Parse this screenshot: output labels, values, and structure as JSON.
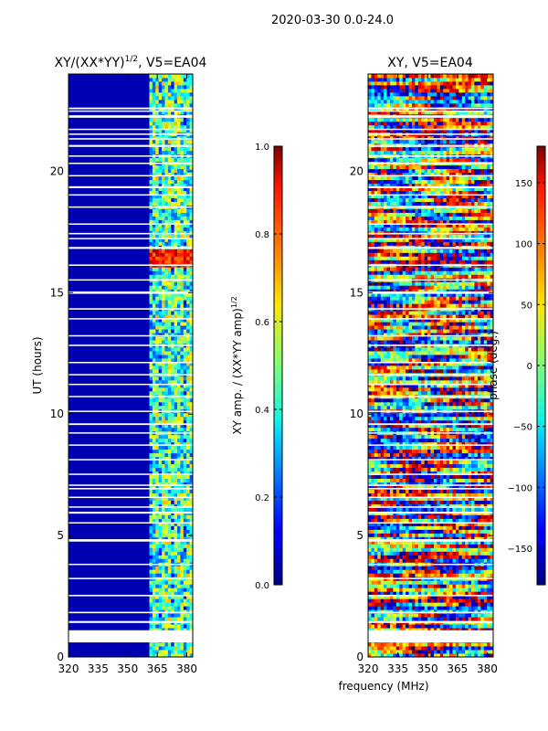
{
  "suptitle": "2020-03-30 0.0-24.0",
  "colors": {
    "background_blue": "#00007f",
    "blank_row": "#ffffff",
    "axis": "#000000"
  },
  "chart_data": [
    {
      "type": "heatmap",
      "title_main": "XY/(XX*YY)",
      "title_exp": "1/2",
      "title_rest": ", V5=EA04",
      "xlabel": "",
      "ylabel": "UT (hours)",
      "xlim": [
        320,
        383
      ],
      "ylim": [
        0,
        24
      ],
      "xticks": [
        320,
        335,
        350,
        365,
        380
      ],
      "yticks": [
        0,
        5,
        10,
        15,
        20
      ],
      "colorscale": "jet",
      "colorbar": {
        "label_main": "XY amp. / (XX*YY amp)",
        "label_exp": "1/2",
        "range": [
          0.0,
          1.0
        ],
        "ticks": [
          "0.0",
          "0.2",
          "0.4",
          "0.6",
          "0.8",
          "1.0"
        ],
        "tick_values": [
          0.0,
          0.2,
          0.4,
          0.6,
          0.8,
          1.0
        ]
      },
      "description_values": {
        "low_freq_band_MHz": [
          320,
          361
        ],
        "low_freq_level": 0.05,
        "high_freq_band_MHz": [
          361,
          383
        ],
        "high_freq_level_range": [
          0.2,
          0.7
        ],
        "bright_rows_UT": [
          16.0,
          16.8
        ]
      }
    },
    {
      "type": "heatmap",
      "title_main": "XY, V5=EA04",
      "xlabel": "frequency (MHz)",
      "ylabel": "",
      "xlim": [
        320,
        383
      ],
      "ylim": [
        0,
        24
      ],
      "xticks": [
        320,
        335,
        350,
        365,
        380
      ],
      "yticks": [
        0,
        5,
        10,
        15,
        20
      ],
      "colorscale": "jet",
      "colorbar": {
        "label_main": "phase (deg.)",
        "range": [
          -180,
          180
        ],
        "ticks": [
          "150",
          "100",
          "50",
          "0",
          "−50",
          "−100",
          "−150"
        ],
        "tick_values": [
          150,
          100,
          50,
          0,
          -50,
          -100,
          -150
        ]
      }
    }
  ],
  "blank_rows_UT": [
    [
      0.6,
      1.1
    ],
    [
      1.4,
      1.48
    ],
    [
      1.8,
      1.86
    ],
    [
      2.5,
      2.56
    ],
    [
      3.2,
      3.26
    ],
    [
      3.8,
      3.84
    ],
    [
      4.75,
      4.85
    ],
    [
      5.5,
      5.55
    ],
    [
      5.9,
      5.98
    ],
    [
      6.15,
      6.2
    ],
    [
      6.55,
      6.6
    ],
    [
      6.9,
      6.96
    ],
    [
      7.05,
      7.1
    ],
    [
      7.5,
      7.55
    ],
    [
      8.1,
      8.15
    ],
    [
      8.7,
      8.75
    ],
    [
      9.2,
      9.25
    ],
    [
      9.55,
      9.62
    ],
    [
      10.1,
      10.14
    ],
    [
      10.7,
      10.75
    ],
    [
      11.2,
      11.25
    ],
    [
      11.6,
      11.65
    ],
    [
      12.1,
      12.15
    ],
    [
      12.8,
      12.86
    ],
    [
      13.2,
      13.25
    ],
    [
      13.9,
      13.95
    ],
    [
      14.3,
      14.36
    ],
    [
      14.95,
      15.05
    ],
    [
      15.5,
      15.55
    ],
    [
      16.1,
      16.16
    ],
    [
      16.8,
      16.88
    ],
    [
      17.2,
      17.25
    ],
    [
      17.4,
      17.46
    ],
    [
      17.8,
      17.85
    ],
    [
      18.5,
      18.55
    ],
    [
      19.0,
      19.05
    ],
    [
      19.3,
      19.38
    ],
    [
      19.8,
      19.84
    ],
    [
      20.3,
      20.35
    ],
    [
      20.6,
      20.65
    ],
    [
      21.0,
      21.08
    ],
    [
      21.3,
      21.36
    ],
    [
      21.5,
      21.55
    ],
    [
      21.7,
      21.75
    ],
    [
      22.2,
      22.3
    ],
    [
      22.45,
      22.5
    ],
    [
      22.55,
      22.62
    ]
  ]
}
